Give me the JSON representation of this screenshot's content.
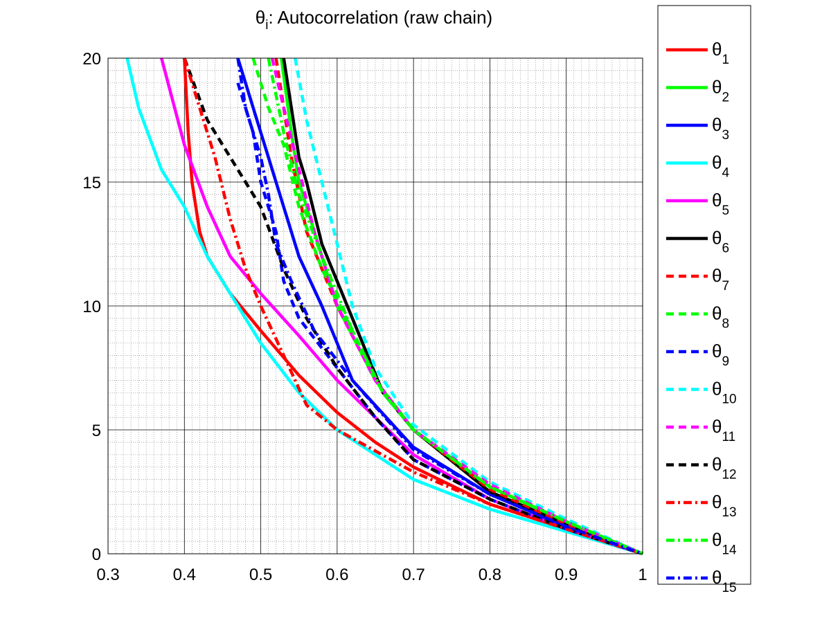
{
  "chart_data": {
    "type": "line",
    "title": "θ_i: Autocorrelation (raw chain)",
    "title_main": "θ",
    "title_sub": "i",
    "title_rest": ": Autocorrelation (raw chain)",
    "xlabel": "",
    "ylabel": "",
    "xlim": [
      0.3,
      1
    ],
    "ylim": [
      0,
      20
    ],
    "x_ticks": [
      0.3,
      0.4,
      0.5,
      0.6,
      0.7,
      0.8,
      0.9,
      1
    ],
    "x_tick_labels": [
      "0.3",
      "0.4",
      "0.5",
      "0.6",
      "0.7",
      "0.8",
      "0.9",
      "1"
    ],
    "y_ticks": [
      0,
      5,
      10,
      15,
      20
    ],
    "y_tick_labels": [
      "0",
      "5",
      "10",
      "15",
      "20"
    ],
    "grid": true,
    "minor_grid": true,
    "legend_position": "outside-right",
    "series": [
      {
        "name": "θ_1",
        "label_main": "θ",
        "label_sub": "1",
        "color": "#ff0000",
        "style": "solid",
        "x": [
          0.4,
          0.405,
          0.41,
          0.42,
          0.43,
          0.46,
          0.5,
          0.55,
          0.6,
          0.65,
          0.7,
          0.8,
          0.9,
          1.0
        ],
        "y": [
          20,
          17,
          15,
          13,
          12,
          10.5,
          9,
          7.2,
          5.7,
          4.5,
          3.5,
          2.0,
          1.0,
          0
        ]
      },
      {
        "name": "θ_2",
        "label_main": "θ",
        "label_sub": "2",
        "color": "#00ff00",
        "style": "solid",
        "x": [
          0.527,
          0.54,
          0.55,
          0.57,
          0.6,
          0.65,
          0.7,
          0.8,
          0.9,
          1.0
        ],
        "y": [
          20,
          17,
          15,
          13,
          10,
          7,
          5,
          2.7,
          1.3,
          0
        ]
      },
      {
        "name": "θ_3",
        "label_main": "θ",
        "label_sub": "3",
        "color": "#0000ff",
        "style": "solid",
        "x": [
          0.47,
          0.5,
          0.52,
          0.55,
          0.58,
          0.62,
          0.7,
          0.8,
          0.9,
          1.0
        ],
        "y": [
          20,
          17,
          15,
          12,
          10,
          7,
          4.3,
          2.4,
          1.1,
          0
        ]
      },
      {
        "name": "θ_4",
        "label_main": "θ",
        "label_sub": "4",
        "color": "#00ffff",
        "style": "solid",
        "x": [
          0.325,
          0.34,
          0.37,
          0.4,
          0.43,
          0.5,
          0.55,
          0.6,
          0.7,
          0.8,
          0.9,
          1.0
        ],
        "y": [
          20,
          18,
          15.5,
          14,
          12,
          8.5,
          6.5,
          5,
          3,
          1.8,
          0.9,
          0
        ]
      },
      {
        "name": "θ_5",
        "label_main": "θ",
        "label_sub": "5",
        "color": "#ff00ff",
        "style": "solid",
        "x": [
          0.37,
          0.4,
          0.43,
          0.46,
          0.5,
          0.55,
          0.6,
          0.7,
          0.8,
          0.9,
          1.0
        ],
        "y": [
          20,
          16.5,
          14,
          12,
          10.5,
          8.8,
          7,
          4,
          2.2,
          1.0,
          0
        ]
      },
      {
        "name": "θ_6",
        "label_main": "θ",
        "label_sub": "6",
        "color": "#000000",
        "style": "solid",
        "x": [
          0.53,
          0.54,
          0.55,
          0.56,
          0.58,
          0.62,
          0.66,
          0.7,
          0.8,
          0.9,
          1.0
        ],
        "y": [
          20,
          18,
          16,
          15,
          12.5,
          9.5,
          6.5,
          5,
          2.5,
          1.2,
          0
        ]
      },
      {
        "name": "θ_7",
        "label_main": "θ",
        "label_sub": "7",
        "color": "#ff0000",
        "style": "dashed",
        "x": [
          0.52,
          0.53,
          0.54,
          0.56,
          0.6,
          0.65,
          0.7,
          0.8,
          0.9,
          1.0
        ],
        "y": [
          20,
          18,
          16,
          13,
          10,
          7,
          5,
          2.6,
          1.2,
          0
        ]
      },
      {
        "name": "θ_8",
        "label_main": "θ",
        "label_sub": "8",
        "color": "#00ff00",
        "style": "dashed",
        "x": [
          0.49,
          0.51,
          0.53,
          0.55,
          0.58,
          0.62,
          0.66,
          0.7,
          0.8,
          0.9,
          1.0
        ],
        "y": [
          20,
          18,
          16.5,
          14,
          11.5,
          9,
          6.5,
          5,
          2.7,
          1.3,
          0
        ]
      },
      {
        "name": "θ_9",
        "label_main": "θ",
        "label_sub": "9",
        "color": "#0000ff",
        "style": "dashed",
        "x": [
          0.47,
          0.49,
          0.5,
          0.52,
          0.53,
          0.55,
          0.6,
          0.65,
          0.7,
          0.8,
          0.9,
          1.0
        ],
        "y": [
          19,
          17,
          15,
          13,
          11,
          9.5,
          7.5,
          5.5,
          3.8,
          2.2,
          1.0,
          0
        ]
      },
      {
        "name": "θ_10",
        "label_main": "θ",
        "label_sub": "10",
        "color": "#00ffff",
        "style": "dashed",
        "x": [
          0.545,
          0.56,
          0.58,
          0.6,
          0.62,
          0.65,
          0.7,
          0.8,
          0.9,
          1.0
        ],
        "y": [
          20,
          17.5,
          15,
          12.5,
          10,
          7.5,
          5.2,
          2.9,
          1.4,
          0
        ]
      },
      {
        "name": "θ_11",
        "label_main": "θ",
        "label_sub": "11",
        "color": "#ff00ff",
        "style": "dashed",
        "x": [
          0.515,
          0.53,
          0.55,
          0.57,
          0.6,
          0.65,
          0.7,
          0.8,
          0.9,
          1.0
        ],
        "y": [
          20,
          18,
          15.5,
          13,
          10,
          7,
          5,
          2.8,
          1.3,
          0
        ]
      },
      {
        "name": "θ_12",
        "label_main": "θ",
        "label_sub": "12",
        "color": "#000000",
        "style": "dashed",
        "x": [
          0.4,
          0.43,
          0.47,
          0.5,
          0.53,
          0.56,
          0.6,
          0.65,
          0.7,
          0.8,
          0.9,
          1.0
        ],
        "y": [
          20,
          17.5,
          15.5,
          14,
          11.5,
          9.5,
          7.5,
          5.5,
          3.8,
          2.2,
          1.0,
          0
        ]
      },
      {
        "name": "θ_13",
        "label_main": "θ",
        "label_sub": "13",
        "color": "#ff0000",
        "style": "dashdot",
        "x": [
          0.4,
          0.42,
          0.44,
          0.46,
          0.48,
          0.5,
          0.53,
          0.56,
          0.6,
          0.7,
          0.8,
          0.9,
          1.0
        ],
        "y": [
          20,
          18,
          16,
          13.5,
          11.5,
          10,
          8,
          6,
          5,
          3.3,
          2.0,
          1.0,
          0
        ]
      },
      {
        "name": "θ_14",
        "label_main": "θ",
        "label_sub": "14",
        "color": "#00ff00",
        "style": "dashdot",
        "x": [
          0.51,
          0.53,
          0.55,
          0.58,
          0.62,
          0.66,
          0.7,
          0.8,
          0.9,
          1.0
        ],
        "y": [
          20,
          17,
          14.5,
          12,
          9,
          6.5,
          5,
          2.7,
          1.3,
          0
        ]
      },
      {
        "name": "θ_15",
        "label_main": "θ",
        "label_sub": "15",
        "color": "#0000ff",
        "style": "dashdot",
        "x": [
          0.47,
          0.48,
          0.5,
          0.51,
          0.52,
          0.54,
          0.57,
          0.62,
          0.7,
          0.8,
          0.9,
          1.0
        ],
        "y": [
          20,
          18,
          16,
          14.5,
          12.5,
          11,
          9,
          7,
          4.2,
          2.4,
          1.1,
          0
        ]
      }
    ]
  }
}
